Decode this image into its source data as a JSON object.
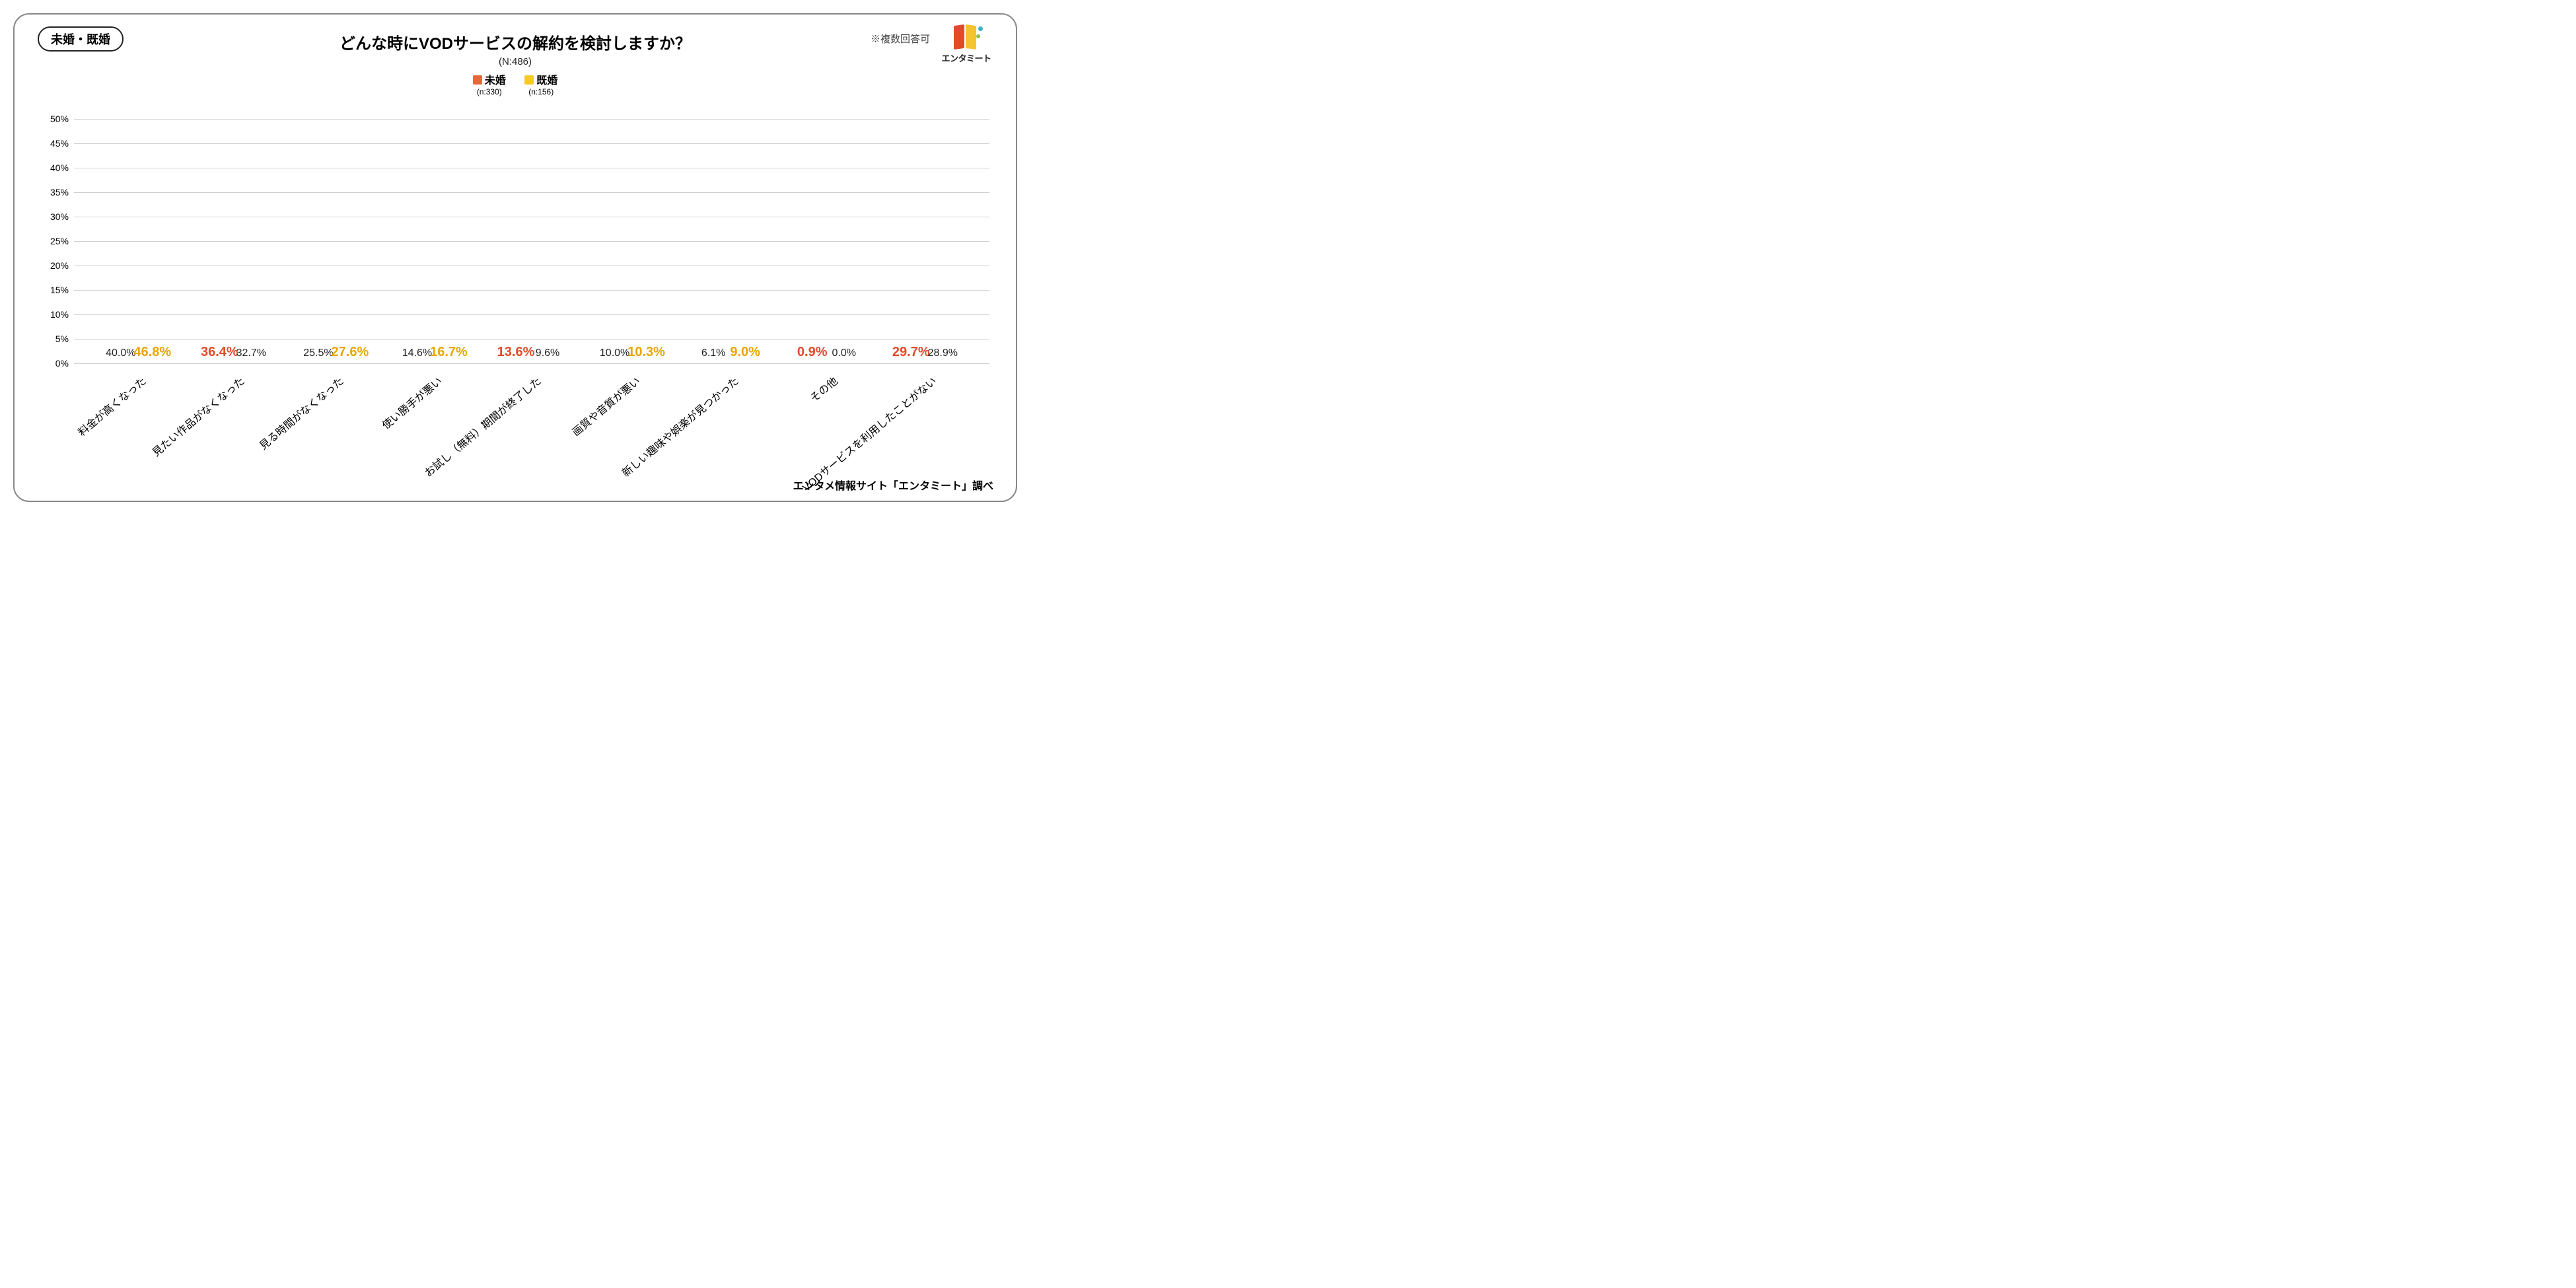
{
  "tag_label": "未婚・既婚",
  "title": "どんな時にVODサービスの解約を検討しますか？",
  "n_total": "(N:486)",
  "note": "※複数回答可",
  "logo": "エンタミート",
  "footer": "エンタメ情報サイト「エンタミート」調べ",
  "colors": {
    "series1": "#e8663c",
    "series2": "#f6c92b",
    "hi1": "#e14b2a",
    "hi2": "#e9a600",
    "text": "#222222",
    "grid": "#d0d0d0",
    "border": "#888888",
    "bg": "#ffffff"
  },
  "series": [
    {
      "name": "未婚",
      "n": "(n:330)"
    },
    {
      "name": "既婚",
      "n": "(n:156)"
    }
  ],
  "y": {
    "min": 0,
    "max": 50,
    "step": 5,
    "suffix": "%"
  },
  "categories": [
    "料金が高くなった",
    "見たい作品がなくなった",
    "見る時間がなくなった",
    "使い勝手が悪い",
    "お試し（無料）期間が終了した",
    "画質や音質が悪い",
    "新しい趣味や娯楽が見つかった",
    "その他",
    "VODサービスを利用したことがない"
  ],
  "data": [
    {
      "v1": 40.0,
      "v2": 46.8,
      "hi1": false,
      "hi2": true
    },
    {
      "v1": 36.4,
      "v2": 32.7,
      "hi1": true,
      "hi2": false
    },
    {
      "v1": 25.5,
      "v2": 27.6,
      "hi1": false,
      "hi2": true
    },
    {
      "v1": 14.6,
      "v2": 16.7,
      "hi1": false,
      "hi2": true
    },
    {
      "v1": 13.6,
      "v2": 9.6,
      "hi1": true,
      "hi2": false
    },
    {
      "v1": 10.0,
      "v2": 10.3,
      "hi1": false,
      "hi2": true
    },
    {
      "v1": 6.1,
      "v2": 9.0,
      "hi1": false,
      "hi2": true
    },
    {
      "v1": 0.9,
      "v2": 0.0,
      "hi1": true,
      "hi2": false
    },
    {
      "v1": 29.7,
      "v2": 28.9,
      "hi1": true,
      "hi2": false
    }
  ]
}
